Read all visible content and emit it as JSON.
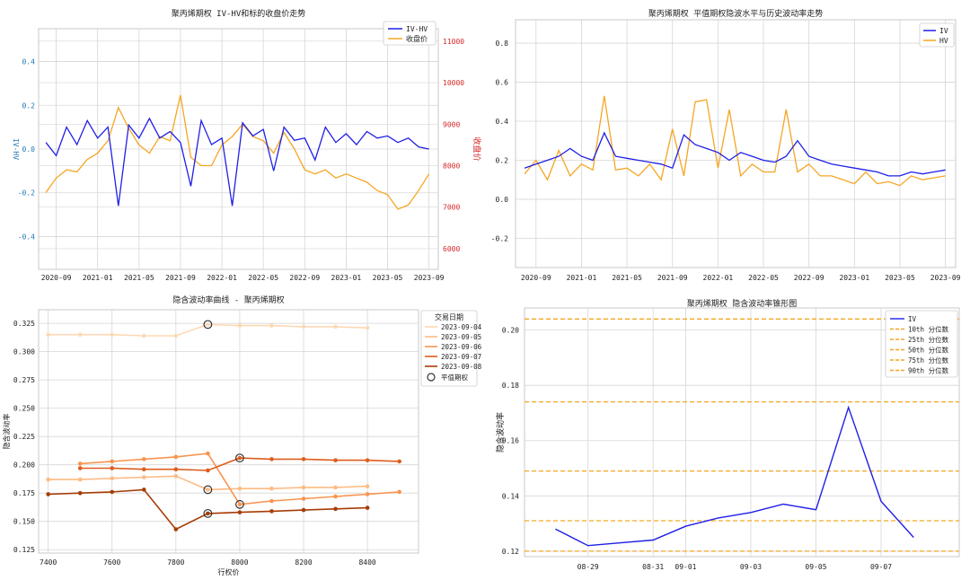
{
  "colors": {
    "blue": "#1f1fe6",
    "orange": "#f5a623",
    "red": "#d62728",
    "tickblue": "#1f77b4",
    "grid": "#d6d6d6",
    "frame": "#c8c8c8"
  },
  "chart_data": [
    {
      "type": "line",
      "title": "聚丙烯期权 IV-HV和标的收盘价走势",
      "ylabel_left": "IV-HV",
      "ylabel_right": "收盘价",
      "xticks": [
        "2020-09",
        "2021-01",
        "2021-05",
        "2021-09",
        "2022-01",
        "2022-05",
        "2022-09",
        "2023-01",
        "2023-05",
        "2023-09"
      ],
      "yticks_left": [
        -0.4,
        -0.2,
        0.0,
        0.2,
        0.4
      ],
      "yticks_right": [
        6000,
        7000,
        8000,
        9000,
        10000,
        11000
      ],
      "ylim_left": [
        -0.55,
        0.55
      ],
      "ylim_right": [
        5500,
        11300
      ],
      "legend": [
        "IV-HV",
        "收盘价"
      ],
      "legend_position": "top-right",
      "grid": true,
      "series": [
        {
          "name": "IV-HV",
          "axis": "left",
          "x": [
            "2020-08",
            "2020-09",
            "2020-10",
            "2020-11",
            "2020-12",
            "2021-01",
            "2021-02",
            "2021-03",
            "2021-04",
            "2021-05",
            "2021-06",
            "2021-07",
            "2021-08",
            "2021-09",
            "2021-10",
            "2021-11",
            "2021-12",
            "2022-01",
            "2022-02",
            "2022-03",
            "2022-04",
            "2022-05",
            "2022-06",
            "2022-07",
            "2022-08",
            "2022-09",
            "2022-10",
            "2022-11",
            "2022-12",
            "2023-01",
            "2023-02",
            "2023-03",
            "2023-04",
            "2023-05",
            "2023-06",
            "2023-07",
            "2023-08",
            "2023-09"
          ],
          "values": [
            0.03,
            -0.03,
            0.1,
            0.02,
            0.13,
            0.05,
            0.1,
            -0.26,
            0.11,
            0.05,
            0.14,
            0.05,
            0.08,
            0.03,
            -0.17,
            0.13,
            0.02,
            0.05,
            -0.26,
            0.12,
            0.06,
            0.09,
            -0.1,
            0.1,
            0.04,
            0.05,
            -0.05,
            0.1,
            0.03,
            0.07,
            0.02,
            0.08,
            0.05,
            0.06,
            0.03,
            0.05,
            0.01,
            0.0
          ]
        },
        {
          "name": "收盘价",
          "axis": "right",
          "x": [
            "2020-08",
            "2020-09",
            "2020-10",
            "2020-11",
            "2020-12",
            "2021-01",
            "2021-02",
            "2021-03",
            "2021-04",
            "2021-05",
            "2021-06",
            "2021-07",
            "2021-08",
            "2021-09",
            "2021-10",
            "2021-11",
            "2021-12",
            "2022-01",
            "2022-02",
            "2022-03",
            "2022-04",
            "2022-05",
            "2022-06",
            "2022-07",
            "2022-08",
            "2022-09",
            "2022-10",
            "2022-11",
            "2022-12",
            "2023-01",
            "2023-02",
            "2023-03",
            "2023-04",
            "2023-05",
            "2023-06",
            "2023-07",
            "2023-08",
            "2023-09"
          ],
          "values": [
            7350,
            7700,
            7900,
            7850,
            8150,
            8300,
            8600,
            9400,
            8900,
            8500,
            8300,
            8700,
            8600,
            9700,
            8200,
            8000,
            8000,
            8500,
            8700,
            9000,
            8700,
            8600,
            8300,
            8800,
            8400,
            7900,
            7800,
            7900,
            7700,
            7800,
            7700,
            7600,
            7400,
            7300,
            6950,
            7050,
            7400,
            7800
          ]
        }
      ]
    },
    {
      "type": "line",
      "title": "聚丙烯期权 平值期权隐波水平与历史波动率走势",
      "xticks": [
        "2020-09",
        "2021-01",
        "2021-05",
        "2021-09",
        "2022-01",
        "2022-05",
        "2022-09",
        "2023-01",
        "2023-05",
        "2023-09"
      ],
      "yticks": [
        -0.2,
        0.0,
        0.2,
        0.4,
        0.6,
        0.8
      ],
      "ylim": [
        -0.35,
        0.92
      ],
      "legend": [
        "IV",
        "HV"
      ],
      "legend_position": "top-right",
      "grid": true,
      "series": [
        {
          "name": "IV",
          "x": [
            "2020-08",
            "2020-09",
            "2020-10",
            "2020-11",
            "2020-12",
            "2021-01",
            "2021-02",
            "2021-03",
            "2021-04",
            "2021-05",
            "2021-06",
            "2021-07",
            "2021-08",
            "2021-09",
            "2021-10",
            "2021-11",
            "2021-12",
            "2022-01",
            "2022-02",
            "2022-03",
            "2022-04",
            "2022-05",
            "2022-06",
            "2022-07",
            "2022-08",
            "2022-09",
            "2022-10",
            "2022-11",
            "2022-12",
            "2023-01",
            "2023-02",
            "2023-03",
            "2023-04",
            "2023-05",
            "2023-06",
            "2023-07",
            "2023-08",
            "2023-09"
          ],
          "values": [
            0.16,
            0.18,
            0.2,
            0.22,
            0.26,
            0.22,
            0.2,
            0.34,
            0.22,
            0.21,
            0.2,
            0.19,
            0.18,
            0.16,
            0.33,
            0.28,
            0.26,
            0.24,
            0.2,
            0.24,
            0.22,
            0.2,
            0.19,
            0.22,
            0.3,
            0.22,
            0.2,
            0.18,
            0.17,
            0.16,
            0.15,
            0.14,
            0.12,
            0.12,
            0.14,
            0.13,
            0.14,
            0.15
          ]
        },
        {
          "name": "HV",
          "x": [
            "2020-08",
            "2020-09",
            "2020-10",
            "2020-11",
            "2020-12",
            "2021-01",
            "2021-02",
            "2021-03",
            "2021-04",
            "2021-05",
            "2021-06",
            "2021-07",
            "2021-08",
            "2021-09",
            "2021-10",
            "2021-11",
            "2021-12",
            "2022-01",
            "2022-02",
            "2022-03",
            "2022-04",
            "2022-05",
            "2022-06",
            "2022-07",
            "2022-08",
            "2022-09",
            "2022-10",
            "2022-11",
            "2022-12",
            "2023-01",
            "2023-02",
            "2023-03",
            "2023-04",
            "2023-05",
            "2023-06",
            "2023-07",
            "2023-08",
            "2023-09"
          ],
          "values": [
            0.13,
            0.2,
            0.1,
            0.25,
            0.12,
            0.18,
            0.15,
            0.53,
            0.15,
            0.16,
            0.12,
            0.18,
            0.1,
            0.36,
            0.12,
            0.5,
            0.51,
            0.16,
            0.46,
            0.12,
            0.18,
            0.14,
            0.14,
            0.46,
            0.14,
            0.18,
            0.12,
            0.12,
            0.1,
            0.08,
            0.14,
            0.08,
            0.09,
            0.07,
            0.12,
            0.1,
            0.11,
            0.12
          ]
        }
      ]
    },
    {
      "type": "line",
      "title": "隐含波动率曲线 - 聚丙烯期权",
      "xlabel": "行权价",
      "ylabel": "隐含波动率",
      "xticks": [
        7400,
        7600,
        7800,
        8000,
        8200,
        8400
      ],
      "yticks": [
        0.125,
        0.15,
        0.175,
        0.2,
        0.225,
        0.25,
        0.275,
        0.3,
        0.325
      ],
      "xlim": [
        7370,
        8560
      ],
      "ylim": [
        0.122,
        0.337
      ],
      "legend_title": "交易日期",
      "legend": [
        "2023-09-04",
        "2023-09-05",
        "2023-09-06",
        "2023-09-07",
        "2023-09-08",
        "平值期权"
      ],
      "legend_position": "top-right",
      "grid": true,
      "series": [
        {
          "name": "2023-09-04",
          "color": "#fdd9b5",
          "x": [
            7400,
            7500,
            7600,
            7700,
            7800,
            7900,
            8000,
            8100,
            8200,
            8300,
            8400
          ],
          "values": [
            0.315,
            0.315,
            0.315,
            0.314,
            0.314,
            0.324,
            0.323,
            0.323,
            0.322,
            0.322,
            0.321
          ]
        },
        {
          "name": "2023-09-05",
          "color": "#fdbb84",
          "x": [
            7400,
            7500,
            7600,
            7700,
            7800,
            7900,
            8000,
            8100,
            8200,
            8300,
            8400
          ],
          "values": [
            0.187,
            0.187,
            0.188,
            0.189,
            0.19,
            0.178,
            0.179,
            0.179,
            0.18,
            0.18,
            0.181
          ]
        },
        {
          "name": "2023-09-06",
          "color": "#f8944f",
          "x": [
            7500,
            7600,
            7700,
            7800,
            7900,
            8000,
            8100,
            8200,
            8300,
            8400,
            8500
          ],
          "values": [
            0.201,
            0.203,
            0.205,
            0.207,
            0.21,
            0.165,
            0.168,
            0.17,
            0.172,
            0.174,
            0.176
          ]
        },
        {
          "name": "2023-09-07",
          "color": "#dd5d1d",
          "x": [
            7500,
            7600,
            7700,
            7800,
            7900,
            8000,
            8100,
            8200,
            8300,
            8400,
            8500
          ],
          "values": [
            0.197,
            0.197,
            0.196,
            0.196,
            0.195,
            0.206,
            0.205,
            0.205,
            0.204,
            0.204,
            0.203
          ]
        },
        {
          "name": "2023-09-08",
          "color": "#a63c06",
          "x": [
            7400,
            7500,
            7600,
            7700,
            7800,
            7900,
            8000,
            8100,
            8200,
            8300,
            8400
          ],
          "values": [
            0.174,
            0.175,
            0.176,
            0.178,
            0.143,
            0.157,
            0.158,
            0.159,
            0.16,
            0.161,
            0.162
          ]
        }
      ],
      "atm_points": [
        {
          "x": 7900,
          "y": 0.324
        },
        {
          "x": 7900,
          "y": 0.178
        },
        {
          "x": 8000,
          "y": 0.165
        },
        {
          "x": 8000,
          "y": 0.206
        },
        {
          "x": 7900,
          "y": 0.157
        }
      ]
    },
    {
      "type": "line",
      "title": "聚丙烯期权 隐含波动率锥形图",
      "ylabel": "隐含波动率",
      "xticks": [
        "08-29",
        "08-31",
        "09-01",
        "09-03",
        "09-05",
        "09-07"
      ],
      "yticks": [
        0.12,
        0.14,
        0.16,
        0.18,
        0.2
      ],
      "ylim": [
        0.118,
        0.208
      ],
      "legend": [
        "IV",
        "10th 分位数",
        "25th 分位数",
        "50th 分位数",
        "75th 分位数",
        "90th 分位数"
      ],
      "legend_position": "top-right",
      "grid": true,
      "series": [
        {
          "name": "IV",
          "x": [
            "08-28",
            "08-29",
            "08-30",
            "08-31",
            "09-01",
            "09-02",
            "09-03",
            "09-04",
            "09-05",
            "09-06",
            "09-07",
            "09-08"
          ],
          "values": [
            0.128,
            0.122,
            0.123,
            0.124,
            0.129,
            0.132,
            0.134,
            0.137,
            0.135,
            0.172,
            0.138,
            0.125
          ]
        }
      ],
      "quantile_lines": [
        {
          "name": "10th 分位数",
          "value": 0.12
        },
        {
          "name": "25th 分位数",
          "value": 0.131
        },
        {
          "name": "50th 分位数",
          "value": 0.149
        },
        {
          "name": "75th 分位数",
          "value": 0.174
        },
        {
          "name": "90th 分位数",
          "value": 0.204
        }
      ]
    }
  ]
}
